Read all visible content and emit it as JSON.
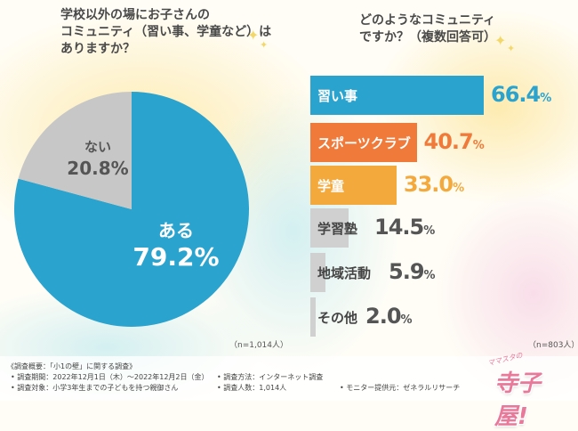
{
  "left_question": "学校以外の場にお子さんの\nコミュニティ（習い事、学童など）は\nありますか？",
  "right_question": "どのようなコミュニティ\nですか？（複数回答可）",
  "colors": {
    "pie_yes": "#2aa3cf",
    "pie_no": "#c7c7c7",
    "bar_blue": "#2aa3cf",
    "bar_orange": "#f07a3a",
    "bar_yellow": "#f4a93c",
    "bar_gray": "#d0d0d0",
    "logo": "#e8799a"
  },
  "chart_data": [
    {
      "type": "pie",
      "slices": [
        {
          "label": "ある",
          "value": 79.2,
          "display": "79.2%",
          "color": "#2aa3cf"
        },
        {
          "label": "ない",
          "value": 20.8,
          "display": "20.8%",
          "color": "#c7c7c7"
        }
      ],
      "sample": "（n=1,014人）"
    },
    {
      "type": "bar",
      "orientation": "horizontal",
      "categories": [
        "習い事",
        "スポーツクラブ",
        "学童",
        "学習塾",
        "地域活動",
        "その他"
      ],
      "values": [
        66.4,
        40.7,
        33.0,
        14.5,
        5.9,
        2.0
      ],
      "display_values": [
        "66.4",
        "40.7",
        "33.0",
        "14.5",
        "5.9",
        "2.0"
      ],
      "unit": "%",
      "colors": [
        "#2aa3cf",
        "#f07a3a",
        "#f4a93c",
        "#d0d0d0",
        "#d0d0d0",
        "#d0d0d0"
      ],
      "value_colors": [
        "#2aa3cf",
        "#f07a3a",
        "#f4a93c",
        "#555555",
        "#555555",
        "#555555"
      ],
      "label_colors": [
        "#ffffff",
        "#ffffff",
        "#ffffff",
        "#444444",
        "#444444",
        "#444444"
      ],
      "xlim": [
        0,
        70
      ],
      "sample": "（n=803人）"
    }
  ],
  "footer": {
    "survey_name": "《調査概要：「小1の壁」に関する調査》",
    "period": "• 調査期間：2022年12月1日（木）〜2022年12月2日（金）",
    "method": "• 調査方法：インターネット調査",
    "target": "• 調査対象：小学3年生までの子どもを持つ親御さん",
    "count": "• 調査人数：1,014人",
    "provider": "• モニター提供元：ゼネラルリサーチ"
  },
  "logo": {
    "sub": "ママスタの",
    "main": "寺子屋!"
  }
}
